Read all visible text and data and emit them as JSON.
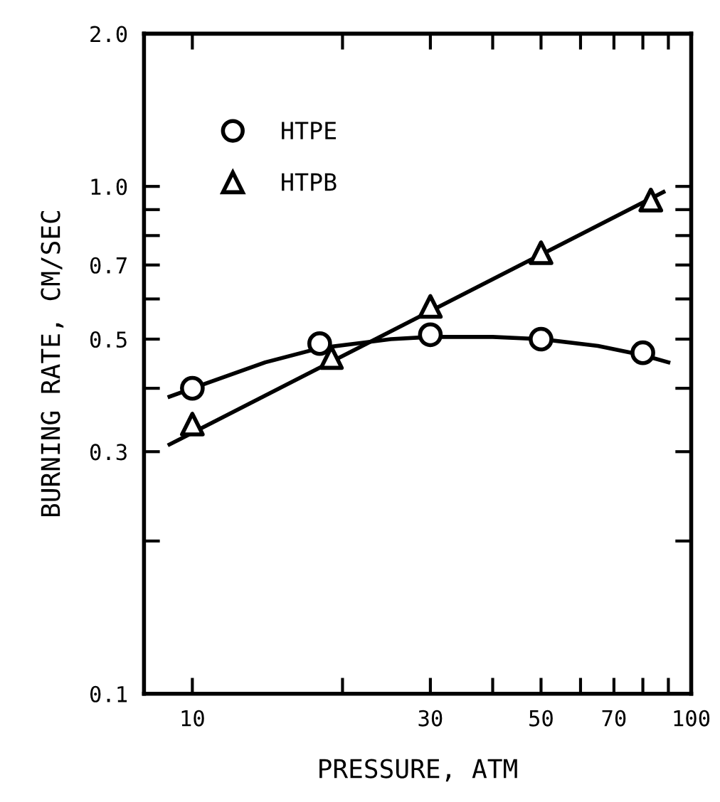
{
  "chart_data": {
    "type": "scatter",
    "xlabel": "PRESSURE, ATM",
    "ylabel": "BURNING RATE, CM/SEC",
    "log": "xy",
    "xlim": [
      8,
      100
    ],
    "ylim": [
      0.1,
      2.0
    ],
    "xticks": [
      10,
      {
        "value": 20,
        "label": null
      },
      30,
      {
        "value": 40,
        "label": null
      },
      50,
      {
        "value": 60,
        "label": null
      },
      70,
      {
        "value": 80,
        "label": null
      },
      {
        "value": 90,
        "label": null
      },
      100
    ],
    "yticks": [
      0.1,
      {
        "value": 0.2,
        "label": null
      },
      0.3,
      {
        "value": 0.4,
        "label": null
      },
      0.5,
      {
        "value": 0.6,
        "label": null
      },
      0.7,
      {
        "value": 0.8,
        "label": null
      },
      {
        "value": 0.9,
        "label": null
      },
      {
        "value": 1.0,
        "label": "1.0"
      },
      {
        "value": 2.0,
        "label": "2.0"
      }
    ],
    "grid": false,
    "legend": "top left",
    "series": [
      {
        "name": "HTPE",
        "marker": "circle",
        "color": "#000000",
        "x": [
          10,
          18,
          30,
          50,
          80
        ],
        "values": [
          0.4,
          0.49,
          0.51,
          0.5,
          0.47
        ]
      },
      {
        "name": "HTPB",
        "marker": "triangle",
        "color": "#000000",
        "x": [
          10,
          19,
          30,
          50,
          83
        ],
        "values": [
          0.34,
          0.46,
          0.58,
          0.74,
          0.94
        ]
      },
      {
        "type": "line",
        "color": "#000000",
        "line_style": "solid",
        "x": [
          9,
          10,
          14,
          18,
          25,
          30,
          40,
          50,
          65,
          80,
          90
        ],
        "values": [
          0.385,
          0.4,
          0.45,
          0.48,
          0.5,
          0.505,
          0.505,
          0.5,
          0.485,
          0.465,
          0.45
        ]
      },
      {
        "type": "line",
        "color": "#000000",
        "line_style": "solid",
        "x": [
          9,
          88
        ],
        "values": [
          0.31,
          0.975
        ]
      }
    ]
  }
}
